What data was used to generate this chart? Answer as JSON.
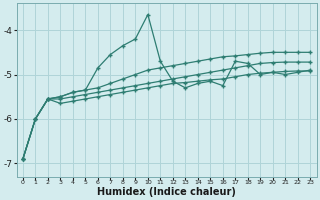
{
  "xlabel": "Humidex (Indice chaleur)",
  "x_values": [
    0,
    1,
    2,
    3,
    4,
    5,
    6,
    7,
    8,
    9,
    10,
    11,
    12,
    13,
    14,
    15,
    16,
    17,
    18,
    19,
    20,
    21,
    22,
    23
  ],
  "line1": [
    -6.9,
    -6.0,
    -5.55,
    -5.5,
    -5.4,
    -5.35,
    -4.85,
    -4.55,
    -4.35,
    -4.2,
    -3.65,
    -4.7,
    -5.15,
    -5.3,
    -5.2,
    -5.15,
    -5.25,
    -4.7,
    -4.75,
    -5.0,
    -4.95,
    -5.0,
    -4.95,
    -4.9
  ],
  "line2": [
    -6.9,
    -6.0,
    -5.55,
    -5.5,
    -5.4,
    -5.35,
    -5.3,
    -5.2,
    -5.1,
    -5.0,
    -4.9,
    -4.85,
    -4.8,
    -4.75,
    -4.7,
    -4.65,
    -4.6,
    -4.58,
    -4.55,
    -4.52,
    -4.5,
    -4.5,
    -4.5,
    -4.5
  ],
  "line3": [
    -6.9,
    -6.0,
    -5.55,
    -5.55,
    -5.5,
    -5.45,
    -5.4,
    -5.35,
    -5.3,
    -5.25,
    -5.2,
    -5.15,
    -5.1,
    -5.05,
    -5.0,
    -4.95,
    -4.9,
    -4.85,
    -4.8,
    -4.75,
    -4.73,
    -4.72,
    -4.72,
    -4.72
  ],
  "line4": [
    -6.9,
    -6.0,
    -5.55,
    -5.65,
    -5.6,
    -5.55,
    -5.5,
    -5.45,
    -5.4,
    -5.35,
    -5.3,
    -5.25,
    -5.2,
    -5.18,
    -5.15,
    -5.12,
    -5.1,
    -5.05,
    -5.0,
    -4.97,
    -4.95,
    -4.93,
    -4.92,
    -4.92
  ],
  "color": "#2e7d72",
  "bg_color": "#d4ecee",
  "grid_color": "#afd4d8",
  "ylim": [
    -7.3,
    -3.4
  ],
  "xlim": [
    -0.5,
    23.5
  ],
  "yticks": [
    -7,
    -6,
    -5,
    -4
  ],
  "xticks": [
    0,
    1,
    2,
    3,
    4,
    5,
    6,
    7,
    8,
    9,
    10,
    11,
    12,
    13,
    14,
    15,
    16,
    17,
    18,
    19,
    20,
    21,
    22,
    23
  ]
}
